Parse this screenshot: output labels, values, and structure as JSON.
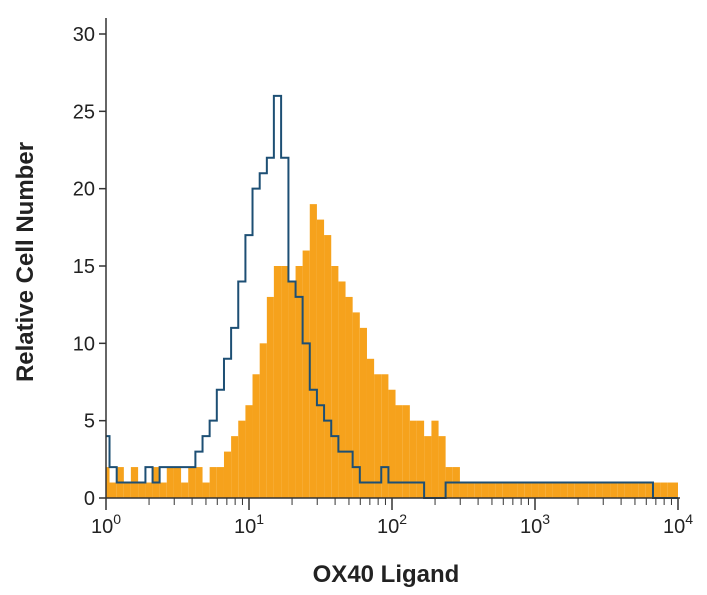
{
  "chart_data": {
    "type": "histogram",
    "title": "",
    "xlabel": "OX40 Ligand",
    "ylabel": "Relative Cell Number",
    "x_scale": "log",
    "xlim": [
      1,
      10000
    ],
    "ylim": [
      0,
      30
    ],
    "x_ticks": [
      {
        "value": 1,
        "base": "10",
        "exp": "0"
      },
      {
        "value": 10,
        "base": "10",
        "exp": "1"
      },
      {
        "value": 100,
        "base": "10",
        "exp": "2"
      },
      {
        "value": 1000,
        "base": "10",
        "exp": "3"
      },
      {
        "value": 10000,
        "base": "10",
        "exp": "4"
      }
    ],
    "y_ticks": [
      "0",
      "5",
      "10",
      "15",
      "20",
      "25",
      "30"
    ],
    "grid": false,
    "legend": "none",
    "colors": {
      "filled": "#f6a21c",
      "outline": "#1d4f74",
      "axis": "#333333"
    },
    "series": [
      {
        "style": "filled",
        "x": [
          1.0,
          1.12,
          1.26,
          1.41,
          1.58,
          1.78,
          2.0,
          2.24,
          2.51,
          2.82,
          3.16,
          3.55,
          3.98,
          4.47,
          5.01,
          5.62,
          6.31,
          7.08,
          7.94,
          8.91,
          10.0,
          11.2,
          12.6,
          14.1,
          15.8,
          17.8,
          20.0,
          22.4,
          25.1,
          28.2,
          31.6,
          35.5,
          39.8,
          44.7,
          50.1,
          56.2,
          63.1,
          70.8,
          79.4,
          89.1,
          100,
          112,
          126,
          141,
          158,
          178,
          200,
          224,
          251,
          282,
          316,
          355,
          398,
          447,
          501,
          562,
          631,
          708,
          794,
          891,
          1000,
          1122,
          1259,
          1413,
          1585,
          1778,
          1995,
          2239,
          2512,
          2818,
          3162,
          3548,
          3981,
          4467,
          5012,
          5623,
          6310,
          7079,
          7943,
          8913
        ],
        "y": [
          2,
          1,
          2,
          1,
          2,
          1,
          1,
          2,
          1,
          2,
          2,
          1,
          2,
          2,
          1,
          2,
          2,
          3,
          4,
          5,
          6,
          8,
          10,
          13,
          15,
          15,
          14,
          15,
          16,
          19,
          18,
          17,
          15,
          14,
          13,
          12,
          11,
          9,
          8,
          8,
          7,
          6,
          6,
          5,
          5,
          4,
          5,
          4,
          2,
          2,
          1,
          1,
          1,
          1,
          1,
          1,
          1,
          1,
          1,
          1,
          1,
          1,
          1,
          1,
          1,
          1,
          1,
          1,
          1,
          1,
          1,
          1,
          1,
          1,
          1,
          1,
          1,
          1,
          1,
          1
        ]
      },
      {
        "style": "outline",
        "x": [
          1.0,
          1.12,
          1.26,
          1.41,
          1.58,
          1.78,
          2.0,
          2.24,
          2.51,
          2.82,
          3.16,
          3.55,
          3.98,
          4.47,
          5.01,
          5.62,
          6.31,
          7.08,
          7.94,
          8.91,
          10.0,
          11.2,
          12.6,
          14.1,
          15.8,
          17.8,
          20.0,
          22.4,
          25.1,
          28.2,
          31.6,
          35.5,
          39.8,
          44.7,
          50.1,
          56.2,
          63.1,
          70.8,
          79.4,
          89.1,
          100,
          112,
          126,
          141,
          158,
          178,
          200,
          224,
          251,
          282,
          316,
          355,
          398,
          447,
          501,
          562,
          631,
          708,
          794,
          891,
          1000,
          1122,
          1259,
          1413,
          1585,
          1778,
          1995,
          2239,
          2512,
          2818,
          3162,
          3548,
          3981,
          4467,
          5012,
          5623,
          6310,
          7079,
          7943,
          8913
        ],
        "y": [
          4,
          2,
          1,
          1,
          1,
          1,
          2,
          1,
          2,
          2,
          2,
          2,
          2,
          3,
          4,
          5,
          7,
          9,
          11,
          14,
          17,
          20,
          21,
          22,
          26,
          22,
          14,
          13,
          10,
          7,
          6,
          5,
          4,
          3,
          3,
          2,
          1,
          1,
          1,
          2,
          1,
          1,
          1,
          1,
          1,
          0,
          0,
          0,
          1,
          1,
          1,
          1,
          1,
          1,
          1,
          1,
          1,
          1,
          1,
          1,
          1,
          1,
          1,
          1,
          1,
          1,
          1,
          1,
          1,
          1,
          1,
          1,
          1,
          1,
          1,
          1,
          1,
          0,
          0,
          0
        ]
      }
    ]
  }
}
